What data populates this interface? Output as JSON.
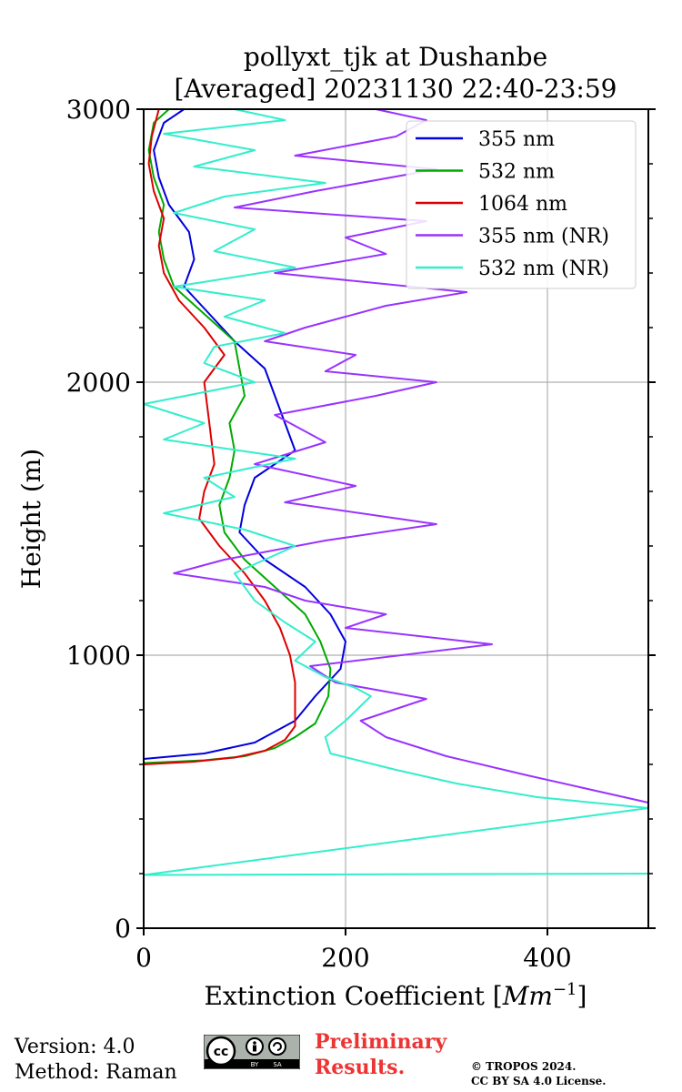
{
  "chart_data": {
    "type": "line",
    "title_line1": "pollyxt_tjk at Dushanbe",
    "title_line2": "[Averaged] 20231130 22:40-23:59",
    "xlabel_text": "Extinction Coefficient [",
    "xlabel_unit_base": "Mm",
    "xlabel_unit_exp": "−1",
    "xlabel_close": "]",
    "ylabel": "Height (m)",
    "xlim": [
      0,
      500
    ],
    "ylim": [
      0,
      3000
    ],
    "x_ticks": [
      0,
      200,
      400
    ],
    "y_ticks": [
      0,
      1000,
      2000,
      3000
    ],
    "y_minor_ticks": [
      200,
      400,
      600,
      800,
      1200,
      1400,
      1600,
      1800,
      2200,
      2400,
      2600,
      2800
    ],
    "grid": true,
    "legend_position": "top-right",
    "series": [
      {
        "name": "355 nm",
        "color": "#0000dd",
        "points": [
          [
            0,
            620
          ],
          [
            60,
            640
          ],
          [
            110,
            680
          ],
          [
            150,
            760
          ],
          [
            170,
            850
          ],
          [
            195,
            950
          ],
          [
            200,
            1050
          ],
          [
            185,
            1150
          ],
          [
            160,
            1250
          ],
          [
            120,
            1350
          ],
          [
            95,
            1450
          ],
          [
            100,
            1550
          ],
          [
            110,
            1650
          ],
          [
            150,
            1750
          ],
          [
            140,
            1850
          ],
          [
            130,
            1950
          ],
          [
            120,
            2050
          ],
          [
            90,
            2150
          ],
          [
            65,
            2250
          ],
          [
            40,
            2350
          ],
          [
            50,
            2450
          ],
          [
            45,
            2550
          ],
          [
            25,
            2650
          ],
          [
            15,
            2750
          ],
          [
            10,
            2850
          ],
          [
            20,
            2950
          ],
          [
            40,
            3000
          ]
        ]
      },
      {
        "name": "532 nm",
        "color": "#00aa00",
        "points": [
          [
            0,
            605
          ],
          [
            60,
            615
          ],
          [
            100,
            630
          ],
          [
            130,
            660
          ],
          [
            150,
            700
          ],
          [
            170,
            750
          ],
          [
            183,
            850
          ],
          [
            185,
            950
          ],
          [
            175,
            1050
          ],
          [
            160,
            1150
          ],
          [
            130,
            1250
          ],
          [
            100,
            1350
          ],
          [
            80,
            1450
          ],
          [
            75,
            1550
          ],
          [
            85,
            1650
          ],
          [
            90,
            1750
          ],
          [
            85,
            1850
          ],
          [
            100,
            1950
          ],
          [
            95,
            2050
          ],
          [
            90,
            2150
          ],
          [
            60,
            2250
          ],
          [
            30,
            2350
          ],
          [
            20,
            2450
          ],
          [
            15,
            2550
          ],
          [
            20,
            2650
          ],
          [
            10,
            2750
          ],
          [
            5,
            2850
          ],
          [
            10,
            2950
          ],
          [
            25,
            3000
          ]
        ]
      },
      {
        "name": "1064 nm",
        "color": "#dd0000",
        "points": [
          [
            0,
            600
          ],
          [
            50,
            610
          ],
          [
            90,
            625
          ],
          [
            120,
            650
          ],
          [
            140,
            690
          ],
          [
            150,
            740
          ],
          [
            150,
            800
          ],
          [
            150,
            900
          ],
          [
            145,
            1000
          ],
          [
            135,
            1100
          ],
          [
            120,
            1200
          ],
          [
            100,
            1300
          ],
          [
            75,
            1400
          ],
          [
            55,
            1500
          ],
          [
            60,
            1600
          ],
          [
            70,
            1700
          ],
          [
            65,
            1850
          ],
          [
            60,
            2000
          ],
          [
            80,
            2100
          ],
          [
            60,
            2200
          ],
          [
            35,
            2300
          ],
          [
            20,
            2400
          ],
          [
            15,
            2500
          ],
          [
            20,
            2600
          ],
          [
            10,
            2700
          ],
          [
            5,
            2800
          ],
          [
            8,
            2900
          ],
          [
            15,
            3000
          ]
        ]
      },
      {
        "name": "355 nm (NR)",
        "color": "#9933ff",
        "points": [
          [
            500,
            460
          ],
          [
            440,
            510
          ],
          [
            380,
            560
          ],
          [
            300,
            630
          ],
          [
            240,
            700
          ],
          [
            215,
            760
          ],
          [
            280,
            840
          ],
          [
            190,
            900
          ],
          [
            165,
            960
          ],
          [
            345,
            1040
          ],
          [
            200,
            1100
          ],
          [
            240,
            1150
          ],
          [
            160,
            1200
          ],
          [
            120,
            1250
          ],
          [
            30,
            1300
          ],
          [
            80,
            1350
          ],
          [
            180,
            1420
          ],
          [
            290,
            1480
          ],
          [
            140,
            1560
          ],
          [
            210,
            1620
          ],
          [
            110,
            1700
          ],
          [
            180,
            1780
          ],
          [
            130,
            1880
          ],
          [
            230,
            1950
          ],
          [
            290,
            2000
          ],
          [
            180,
            2040
          ],
          [
            210,
            2100
          ],
          [
            120,
            2150
          ],
          [
            160,
            2200
          ],
          [
            240,
            2280
          ],
          [
            320,
            2330
          ],
          [
            130,
            2400
          ],
          [
            240,
            2470
          ],
          [
            200,
            2530
          ],
          [
            280,
            2590
          ],
          [
            90,
            2640
          ],
          [
            170,
            2700
          ],
          [
            290,
            2780
          ],
          [
            150,
            2830
          ],
          [
            250,
            2900
          ],
          [
            280,
            2960
          ],
          [
            230,
            3000
          ]
        ]
      },
      {
        "name": "532 nm (NR)",
        "color": "#33eecc",
        "points": [
          [
            500,
            200
          ],
          [
            0,
            195
          ],
          [
            500,
            440
          ],
          [
            390,
            480
          ],
          [
            310,
            530
          ],
          [
            250,
            580
          ],
          [
            185,
            640
          ],
          [
            180,
            700
          ],
          [
            200,
            760
          ],
          [
            225,
            850
          ],
          [
            210,
            880
          ],
          [
            180,
            920
          ],
          [
            150,
            980
          ],
          [
            170,
            1050
          ],
          [
            140,
            1120
          ],
          [
            110,
            1200
          ],
          [
            90,
            1300
          ],
          [
            150,
            1400
          ],
          [
            100,
            1460
          ],
          [
            20,
            1520
          ],
          [
            90,
            1580
          ],
          [
            60,
            1650
          ],
          [
            150,
            1720
          ],
          [
            20,
            1790
          ],
          [
            60,
            1850
          ],
          [
            0,
            1920
          ],
          [
            110,
            2000
          ],
          [
            60,
            2070
          ],
          [
            70,
            2130
          ],
          [
            140,
            2180
          ],
          [
            80,
            2240
          ],
          [
            120,
            2300
          ],
          [
            30,
            2350
          ],
          [
            150,
            2420
          ],
          [
            70,
            2480
          ],
          [
            110,
            2560
          ],
          [
            30,
            2620
          ],
          [
            80,
            2680
          ],
          [
            180,
            2730
          ],
          [
            50,
            2790
          ],
          [
            110,
            2850
          ],
          [
            20,
            2910
          ],
          [
            140,
            2960
          ],
          [
            90,
            3000
          ]
        ]
      }
    ]
  },
  "footer": {
    "version": "Version: 4.0",
    "method": "Method: Raman",
    "preliminary_line1": "Preliminary",
    "preliminary_line2": "Results.",
    "copyright_line1": "© TROPOS 2024.",
    "copyright_line2": "CC BY SA 4.0 License.",
    "license_badge": {
      "icon": "cc-by-sa-icon",
      "cc_text": "cc",
      "by_text": "BY",
      "sa_text": "SA"
    }
  }
}
